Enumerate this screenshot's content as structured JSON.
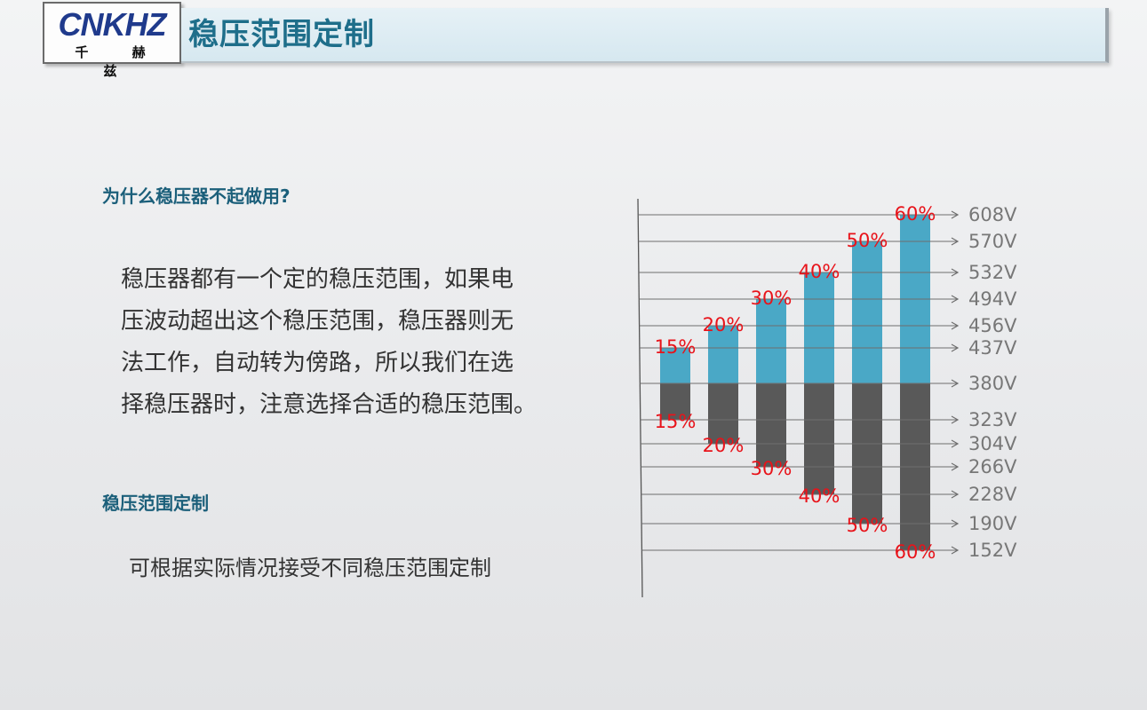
{
  "logo": {
    "mark": "CNKHZ",
    "name": "千 赫 兹"
  },
  "header": {
    "title": "稳压范围定制"
  },
  "section1": {
    "heading": "为什么稳压器不起做用?",
    "lines": [
      "稳压器都有一个定的稳压范围，如果电",
      "压波动超出这个稳压范围，稳压器则无",
      "法工作，自动转为傍路，所以我们在选",
      "择稳压器时，注意选择合适的稳压范围。"
    ]
  },
  "section2": {
    "heading": "稳压范围定制",
    "text": "可根据实际情况接受不同稳压范围定制"
  },
  "colors": {
    "upper": "#4aa8c6",
    "lower": "#595959",
    "label": "#e8131a",
    "tick": "#6e6e6e"
  },
  "chart_data": {
    "type": "bar",
    "categories": [
      "15%",
      "20%",
      "30%",
      "40%",
      "50%",
      "60%"
    ],
    "base_voltage": 380,
    "series": [
      {
        "values": [
          437,
          456,
          494,
          532,
          570,
          608
        ],
        "labels": [
          "15%",
          "20%",
          "30%",
          "40%",
          "50%",
          "60%"
        ]
      },
      {
        "values": [
          323,
          304,
          266,
          228,
          190,
          152
        ],
        "labels": [
          "15%",
          "20%",
          "30%",
          "40%",
          "50%",
          "60%"
        ]
      }
    ],
    "axis_ticks": [
      "608V",
      "570V",
      "532V",
      "494V",
      "456V",
      "437V",
      "380V",
      "323V",
      "304V",
      "266V",
      "228V",
      "190V",
      "152V"
    ],
    "ylim": [
      152,
      608
    ]
  }
}
